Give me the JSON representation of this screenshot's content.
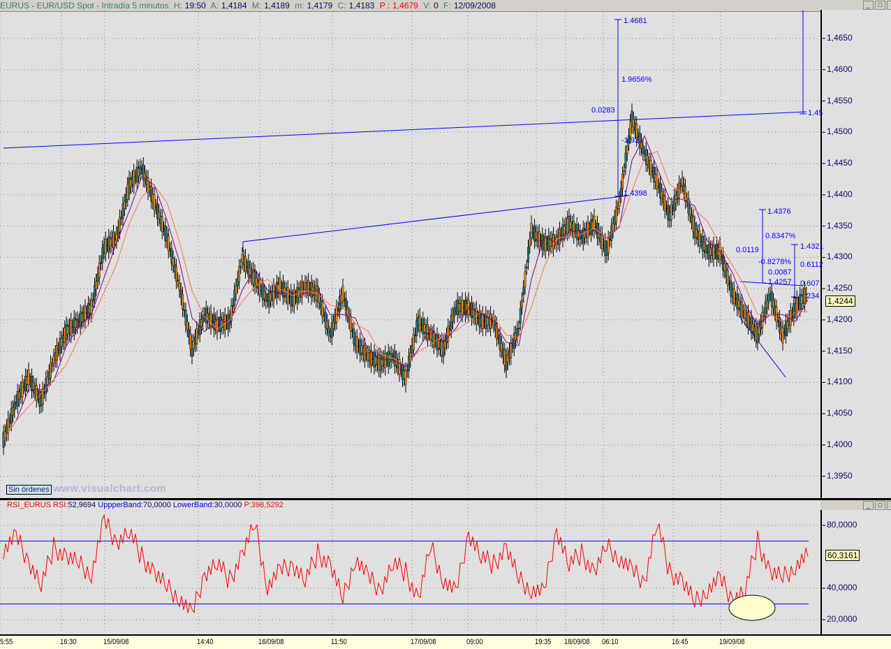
{
  "header": {
    "symbol": "EURUS - EUR/USD Spot - Intradía 5 minutos",
    "h_label": "H:",
    "h_value": "19:50",
    "a_label": "A:",
    "a_value": "1,4184",
    "m_label": "M:",
    "m_value": "1,4189",
    "mn_label": "m:",
    "mn_value": "1,4179",
    "c_label": "C:",
    "c_value": "1,4183",
    "p_label": "P :",
    "p_value": "1,4679",
    "v_label": "V:",
    "v_value": "0",
    "f_label": "F:",
    "f_value": "12/09/2008"
  },
  "window_buttons": {
    "minimize": "_",
    "maximize": "□",
    "close": "×"
  },
  "orders_button": "Sin órdenes",
  "watermark": "www.visualchart.com",
  "rsi_header": {
    "name": "RSI_EURUS",
    "rsi_label": "RSI:",
    "rsi_value": "52,9694",
    "upper_label": "UppperBand:",
    "upper_value": "70,0000",
    "lower_label": "LowerBand:",
    "lower_value": "30,0000",
    "p_label": "P:",
    "p_value": "398,5292"
  },
  "colors": {
    "price_candle": "#000000",
    "candle_up": "#ff8c00",
    "ma_fast": "#800080",
    "ma_slow": "#ff7050",
    "rsi": "#ff0000",
    "bands": "#0000ff",
    "drawings": "#0000ff"
  },
  "chart_data": [
    {
      "type": "candlestick",
      "title": "EURUS - EUR/USD Spot - Intradía 5 minutos",
      "ylim": [
        1.392,
        1.47
      ],
      "y_ticks": [
        "1,4650",
        "1,4600",
        "1,4550",
        "1,4500",
        "1,4450",
        "1,4400",
        "1,4350",
        "1,4300",
        "1,4250",
        "1,4200",
        "1,4150",
        "1,4100",
        "1,4050",
        "1,4000",
        "1,3950"
      ],
      "x_ticks": [
        "5:55",
        "16:30",
        "15/09/08",
        "14:40",
        "16/09/08",
        "11:50",
        "17/09/08",
        "09:00",
        "19:35",
        "18/09/08",
        "06:10",
        "16:45",
        "19/09/08"
      ],
      "grid": true,
      "last_price": "1,4244",
      "close": [
        1.4008,
        1.4069,
        1.4108,
        1.4069,
        1.4136,
        1.4181,
        1.4198,
        1.422,
        1.4315,
        1.4332,
        1.4415,
        1.4443,
        1.4388,
        1.4332,
        1.4254,
        1.4153,
        1.4209,
        1.4192,
        1.4198,
        1.4298,
        1.4265,
        1.4231,
        1.4254,
        1.4231,
        1.4254,
        1.4242,
        1.4175,
        1.4242,
        1.4164,
        1.4142,
        1.4131,
        1.4142,
        1.4108,
        1.4198,
        1.4175,
        1.4153,
        1.422,
        1.422,
        1.4198,
        1.4198,
        1.4131,
        1.4187,
        1.4343,
        1.4321,
        1.4326,
        1.4354,
        1.4332,
        1.4354,
        1.4309,
        1.4388,
        1.4522,
        1.4466,
        1.4421,
        1.4365,
        1.4421,
        1.4343,
        1.4309,
        1.4309,
        1.4242,
        1.4209,
        1.4175,
        1.4242,
        1.4175,
        1.422,
        1.4244
      ],
      "annotations": [
        "1.4681",
        "1.9656%",
        "0.0283",
        "-1.92",
        "1.4398",
        "1.4376",
        "0.8347%",
        "0.0119",
        "1.4321",
        "-0.8278%",
        "0.6112",
        "0.0087",
        "1.4257",
        "0.607",
        "234",
        "1.45"
      ]
    },
    {
      "type": "line",
      "title": "RSI_EURUS",
      "ylim": [
        10,
        90
      ],
      "y_ticks": [
        "80,0000",
        "40,0000",
        "20,0000"
      ],
      "upper_band": 70,
      "lower_band": 30,
      "last_value": "60,3161",
      "values": [
        65,
        72,
        58,
        42,
        66,
        60,
        55,
        50,
        82,
        70,
        76,
        60,
        50,
        40,
        35,
        22,
        50,
        56,
        45,
        62,
        80,
        42,
        50,
        56,
        45,
        62,
        55,
        32,
        60,
        46,
        40,
        56,
        50,
        33,
        66,
        46,
        36,
        76,
        60,
        55,
        66,
        45,
        40,
        36,
        78,
        55,
        62,
        50,
        66,
        60,
        50,
        45,
        82,
        50,
        45,
        30,
        40,
        45,
        34,
        38,
        70,
        50,
        46,
        55,
        60
      ]
    }
  ]
}
